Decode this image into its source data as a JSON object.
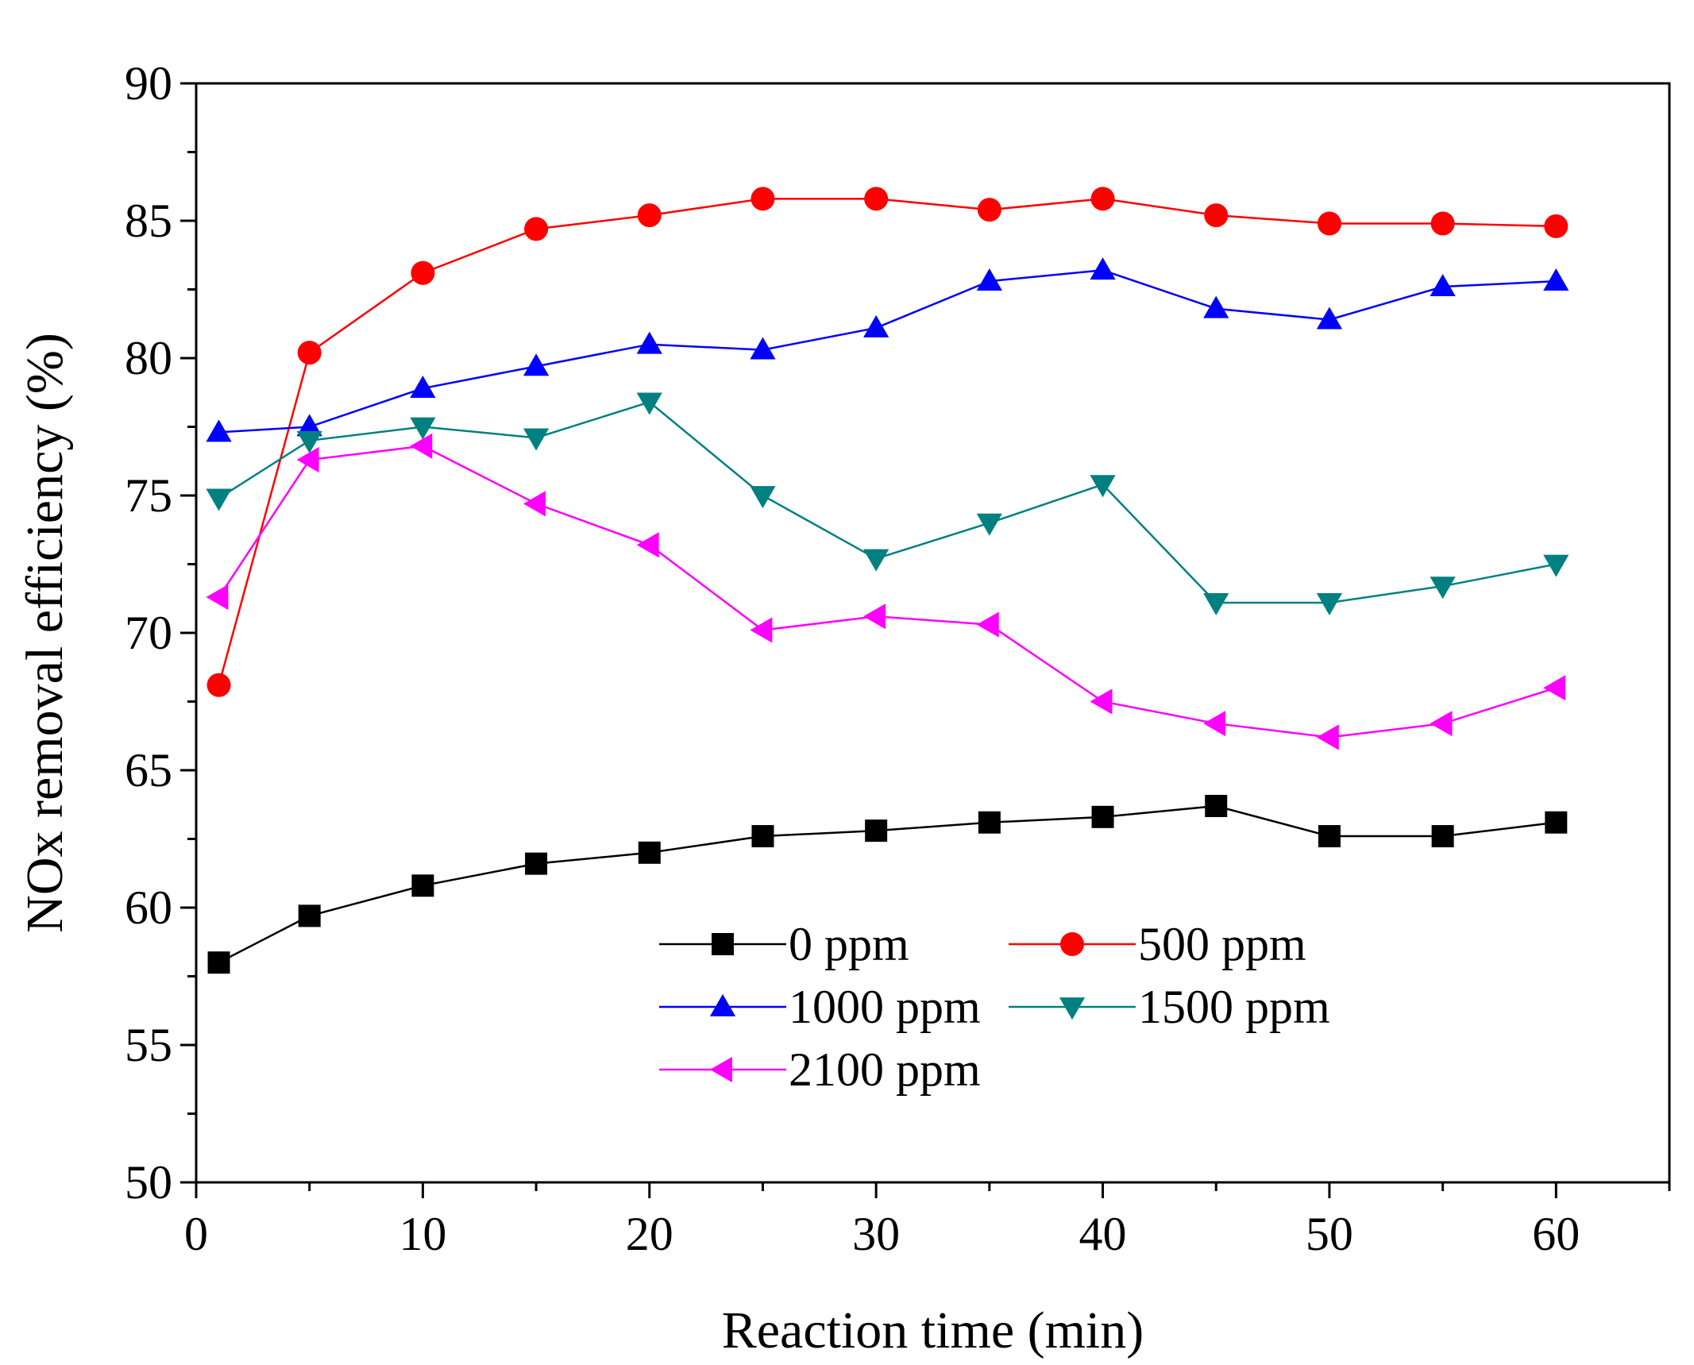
{
  "chart_data": {
    "type": "line",
    "title": "",
    "xlabel": "Reaction time (min)",
    "ylabel": "NOx removal efficiency (%)",
    "xlim": [
      0,
      65
    ],
    "ylim": [
      50,
      90
    ],
    "x_ticks": [
      0,
      10,
      20,
      30,
      40,
      50,
      60
    ],
    "x_tick_labels": [
      "0",
      "10",
      "20",
      "30",
      "40",
      "50",
      "60"
    ],
    "y_ticks": [
      50,
      55,
      60,
      65,
      70,
      75,
      80,
      85,
      90
    ],
    "y_tick_labels": [
      "50",
      "55",
      "60",
      "65",
      "70",
      "75",
      "80",
      "85",
      "90"
    ],
    "grid": false,
    "legend_position": "center",
    "x": [
      1,
      5,
      10,
      15,
      20,
      25,
      30,
      35,
      40,
      45,
      50,
      55,
      60
    ],
    "series": [
      {
        "name": "0 ppm",
        "color": "#000000",
        "marker": "square",
        "values": [
          58.0,
          59.7,
          60.8,
          61.6,
          62.0,
          62.6,
          62.8,
          63.1,
          63.3,
          63.7,
          62.6,
          62.6,
          63.1
        ]
      },
      {
        "name": "500 ppm",
        "color": "#ff0000",
        "marker": "circle",
        "values": [
          68.1,
          80.2,
          83.1,
          84.7,
          85.2,
          85.8,
          85.8,
          85.4,
          85.8,
          85.2,
          84.9,
          84.9,
          84.8
        ]
      },
      {
        "name": "1000 ppm",
        "color": "#0000ff",
        "marker": "triangle-up",
        "values": [
          77.3,
          77.5,
          78.9,
          79.7,
          80.5,
          80.3,
          81.1,
          82.8,
          83.2,
          81.8,
          81.4,
          82.6,
          82.8
        ]
      },
      {
        "name": "1500 ppm",
        "color": "#008080",
        "marker": "triangle-down",
        "values": [
          74.9,
          77.0,
          77.5,
          77.1,
          78.4,
          75.0,
          72.7,
          74.0,
          75.4,
          71.1,
          71.1,
          71.7,
          72.5
        ]
      },
      {
        "name": "2100 ppm",
        "color": "#ff00ff",
        "marker": "triangle-left",
        "values": [
          71.3,
          76.3,
          76.8,
          74.7,
          73.2,
          70.1,
          70.6,
          70.3,
          67.5,
          66.7,
          66.2,
          66.7,
          68.0
        ]
      }
    ]
  }
}
